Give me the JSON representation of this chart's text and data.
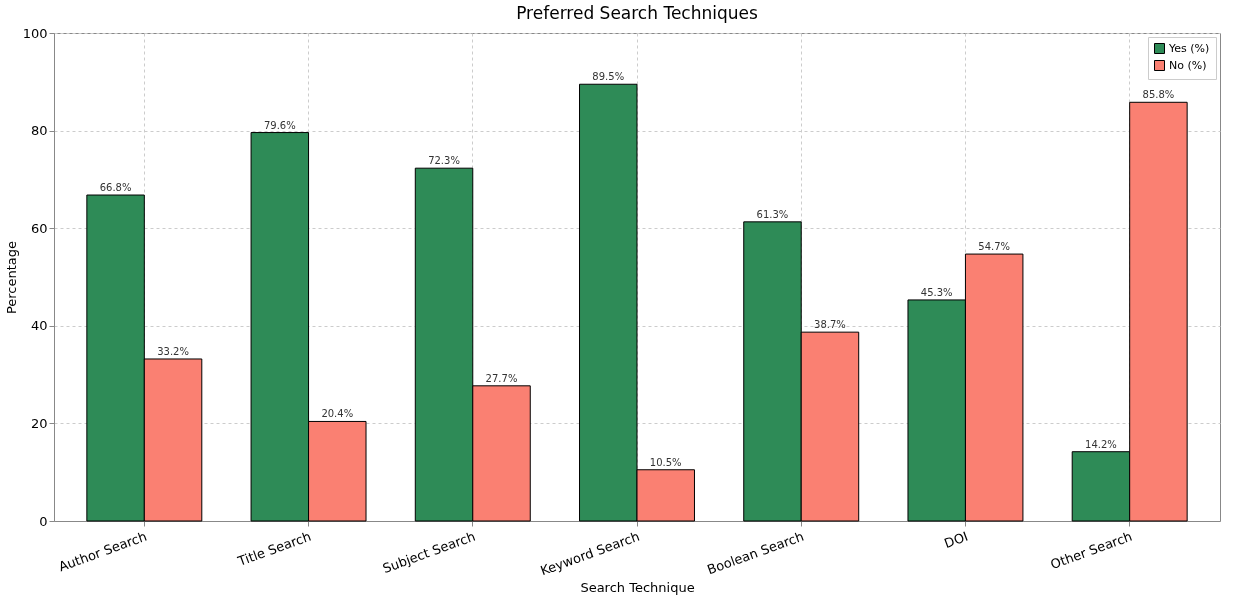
{
  "chart_data": {
    "type": "bar",
    "title": "Preferred Search Techniques",
    "xlabel": "Search Technique",
    "ylabel": "Percentage",
    "categories": [
      "Author Search",
      "Title Search",
      "Subject Search",
      "Keyword Search",
      "Boolean Search",
      "DOI",
      "Other Search"
    ],
    "series": [
      {
        "name": "Yes (%)",
        "color": "#2e8b57",
        "values": [
          66.8,
          79.6,
          72.3,
          89.5,
          61.3,
          45.3,
          14.2
        ],
        "value_labels": [
          "66.8%",
          "79.6%",
          "72.3%",
          "89.5%",
          "61.3%",
          "45.3%",
          "14.2%"
        ]
      },
      {
        "name": "No (%)",
        "color": "#fa8072",
        "values": [
          33.2,
          20.4,
          27.7,
          10.5,
          38.7,
          54.7,
          85.8
        ],
        "value_labels": [
          "33.2%",
          "20.4%",
          "27.7%",
          "10.5%",
          "38.7%",
          "54.7%",
          "85.8%"
        ]
      }
    ],
    "ylim": [
      0,
      100
    ],
    "yticks": [
      0,
      20,
      40,
      60,
      80,
      100
    ],
    "grid": true,
    "legend": "top right"
  }
}
